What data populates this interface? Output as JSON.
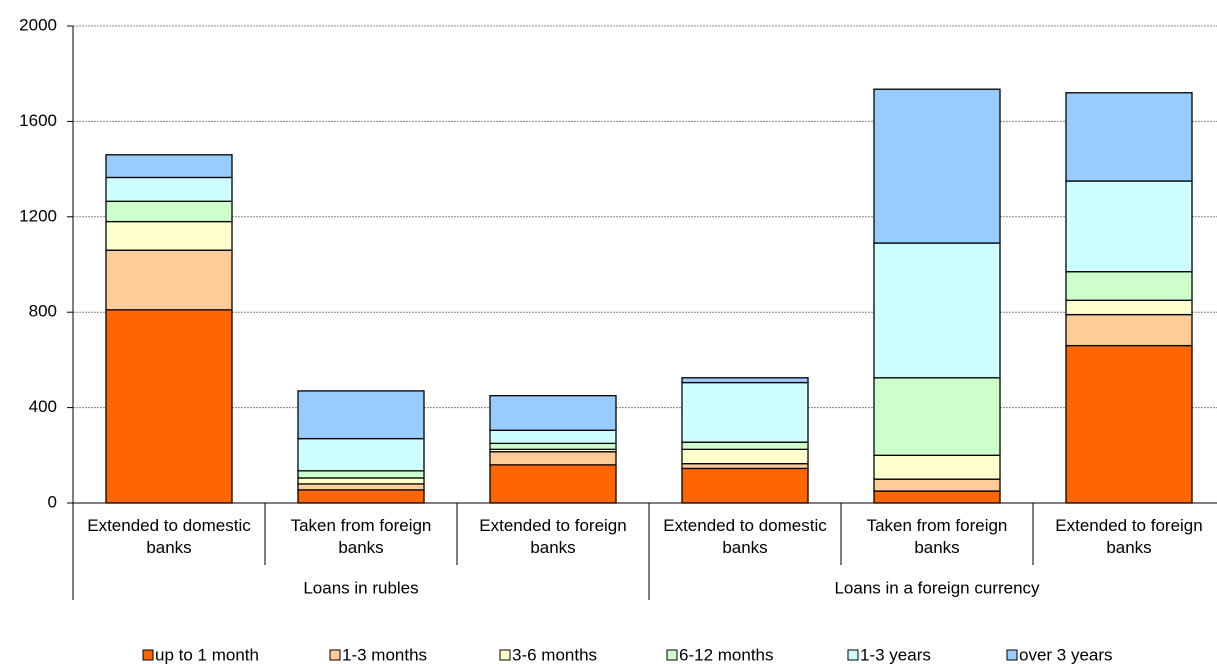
{
  "chart_data": {
    "type": "stacked-bar",
    "groups": [
      {
        "name": "Loans in rubles",
        "categories": [
          "Extended to domestic banks",
          "Taken from foreign banks",
          "Extended to foreign banks"
        ]
      },
      {
        "name": "Loans in a foreign currency",
        "categories": [
          "Extended to domestic banks",
          "Taken from foreign banks",
          "Extended to foreign banks"
        ]
      }
    ],
    "series": [
      {
        "name": "up to 1 month",
        "color": "#ff6600",
        "values": [
          810,
          55,
          160,
          145,
          50,
          660
        ]
      },
      {
        "name": "1-3 months",
        "color": "#ffcc99",
        "values": [
          250,
          25,
          55,
          20,
          50,
          130
        ]
      },
      {
        "name": "3-6 months",
        "color": "#ffffcc",
        "values": [
          120,
          25,
          10,
          60,
          100,
          60
        ]
      },
      {
        "name": "6-12 months",
        "color": "#ccffcc",
        "values": [
          85,
          30,
          25,
          30,
          325,
          120
        ]
      },
      {
        "name": "1-3 years",
        "color": "#ccffff",
        "values": [
          100,
          135,
          55,
          250,
          565,
          380
        ]
      },
      {
        "name": "over 3 years",
        "color": "#99ccff",
        "values": [
          95,
          200,
          145,
          20,
          645,
          370
        ]
      }
    ],
    "ylim": [
      0,
      2000
    ],
    "yticks": [
      0,
      400,
      800,
      1200,
      1600,
      2000
    ],
    "grid": true,
    "legend": "bottom"
  }
}
